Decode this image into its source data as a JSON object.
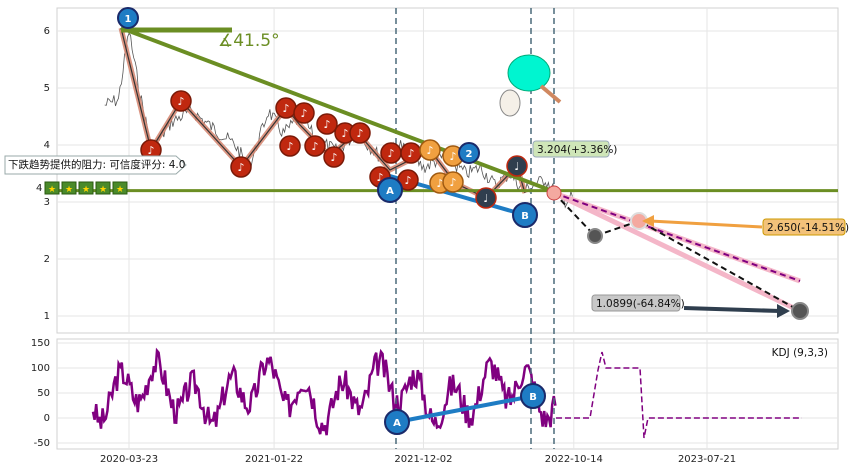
{
  "chart_data": [
    {
      "type": "line",
      "panel": "price",
      "ylim": [
        0.7,
        6.4
      ],
      "y_ticks": [
        "1",
        "2",
        "3",
        "4",
        "5",
        "6"
      ],
      "x_ticks": [
        "2020-03-23",
        "2021-01-22",
        "2021-12-02",
        "2022-10-14",
        "2023-07-21"
      ],
      "grid": true,
      "series": [
        {
          "x": [
            "2020-02-01",
            "2020-03-01",
            "2020-03-23",
            "2020-04-15",
            "2020-05-10",
            "2020-06-20",
            "2020-08-01",
            "2020-09-15",
            "2020-11-01",
            "2020-12-01",
            "2021-01-10",
            "2021-02-10",
            "2021-03-20",
            "2021-04-20",
            "2021-06-01",
            "2021-07-15",
            "2021-09-01",
            "2021-10-15",
            "2021-12-02",
            "2022-01-15",
            "2022-03-01",
            "2022-04-01",
            "2022-05-01",
            "2022-06-01",
            "2022-07-01",
            "2022-08-15",
            "2022-09-20",
            "2022-10-14"
          ],
          "y": [
            4.7,
            4.8,
            6.0,
            4.9,
            3.9,
            4.4,
            4.6,
            4.3,
            4.0,
            3.6,
            4.6,
            4.2,
            4.5,
            4.1,
            3.9,
            4.2,
            3.8,
            4.0,
            3.6,
            3.8,
            3.5,
            3.6,
            3.3,
            3.5,
            3.2,
            3.4,
            3.0,
            3.1
          ]
        }
      ],
      "horizontal_line": 3.2,
      "resistance_angle": "∡41.5°",
      "annotations": [
        {
          "label": "下跌趋势提供的阻力: 可信度评分: 4.0"
        },
        {
          "label": "4"
        },
        {
          "label": "3.204(+3.36%)",
          "x": "2022-10-14",
          "y": 3.204
        },
        {
          "label": "2.650(-14.51%)",
          "x": "2023-03-01",
          "y": 2.65
        },
        {
          "label": "1.0899(-64.84%)",
          "x": "2024-04-01",
          "y": 1.0899
        }
      ],
      "markers": [
        "1",
        "2",
        "A",
        "B"
      ]
    },
    {
      "type": "line",
      "panel": "indicator",
      "legend": "KDJ (9,3,3)",
      "ylim": [
        -60,
        160
      ],
      "y_ticks": [
        "150",
        "100",
        "50",
        "0",
        "-50"
      ],
      "markers": [
        "A",
        "B"
      ]
    }
  ],
  "colors": {
    "price": "#555555",
    "trend": "#6b8e23",
    "zigzag": "#d4826c",
    "kdj": "#800080",
    "marker_blue": "#1e7cc4",
    "marker_red": "#c0280f",
    "marker_orange": "#f0a040",
    "projection_pink": "#f4b6c8"
  }
}
